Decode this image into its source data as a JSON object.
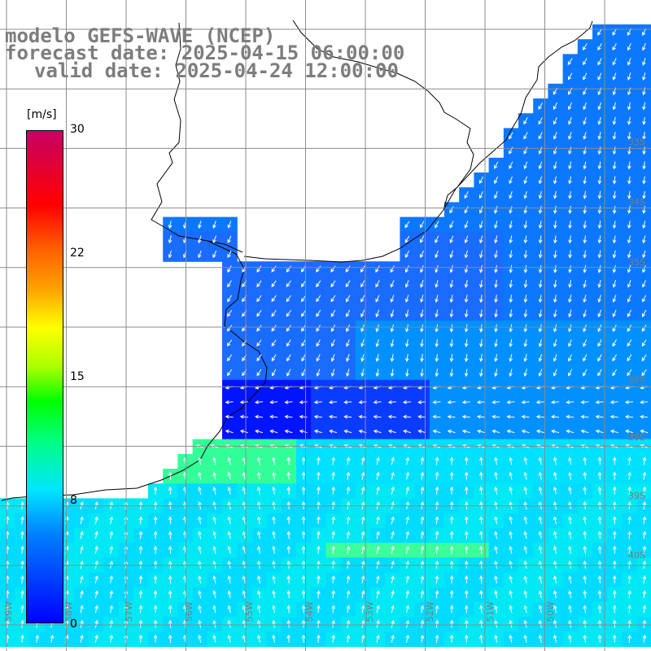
{
  "title": {
    "model": "modelo GEFS-WAVE (NCEP)",
    "forecast": "forecast date: 2025-04-15 06:00:00",
    "valid": "valid date: 2025-04-24 12:00:00"
  },
  "colorbar": {
    "unit": "[m/s]",
    "ticks": [
      "30",
      "22",
      "15",
      "8",
      "0"
    ],
    "colors": [
      "#0000ff",
      "#0080ff",
      "#00e5ff",
      "#00ff80",
      "#00ff00",
      "#ffff00",
      "#ff6000",
      "#ff0000",
      "#c80064"
    ]
  },
  "lat_labels": [
    "33S",
    "34S",
    "35S",
    "36S",
    "37S",
    "38S",
    "39S",
    "40S"
  ],
  "lon_labels": [
    "59W",
    "58W",
    "57W",
    "56W",
    "55W",
    "54W",
    "53W",
    "52W",
    "51W",
    "50W"
  ],
  "colors": {
    "land": "#ffffff",
    "grid": "#8c8c8c",
    "coast": "#000000",
    "arrow": "#ffffff",
    "label": "#7d7d7d"
  }
}
